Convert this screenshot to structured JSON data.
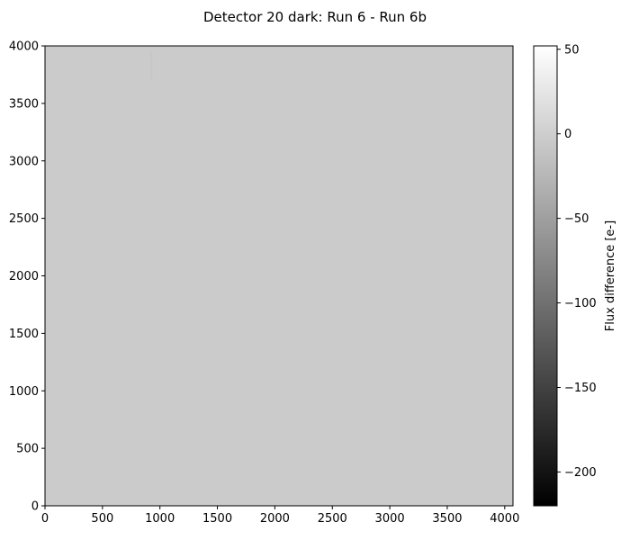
{
  "chart_data": {
    "type": "heatmap",
    "title": "Detector 20 dark: Run 6 - Run 6b",
    "xlabel": "",
    "ylabel": "",
    "xlim": [
      0,
      4072
    ],
    "ylim": [
      0,
      4000
    ],
    "x_ticks": [
      0,
      500,
      1000,
      1500,
      2000,
      2500,
      3000,
      3500,
      4000
    ],
    "y_ticks": [
      0,
      500,
      1000,
      1500,
      2000,
      2500,
      3000,
      3500,
      4000
    ],
    "background_value": -3,
    "features": [
      {
        "type": "vertical-streak",
        "x": 925,
        "y_start": 3700,
        "y_end": 3950,
        "value": -8
      }
    ],
    "colormap": "gray",
    "colorbar": {
      "label": "Flux difference [e-]",
      "vmin": -220,
      "vmax": 52,
      "ticks": [
        50,
        0,
        -50,
        -100,
        -150,
        -200
      ],
      "tick_labels": [
        "50",
        "0",
        "−50",
        "−100",
        "−150",
        "−200"
      ]
    },
    "grid": false,
    "legend": "none"
  }
}
